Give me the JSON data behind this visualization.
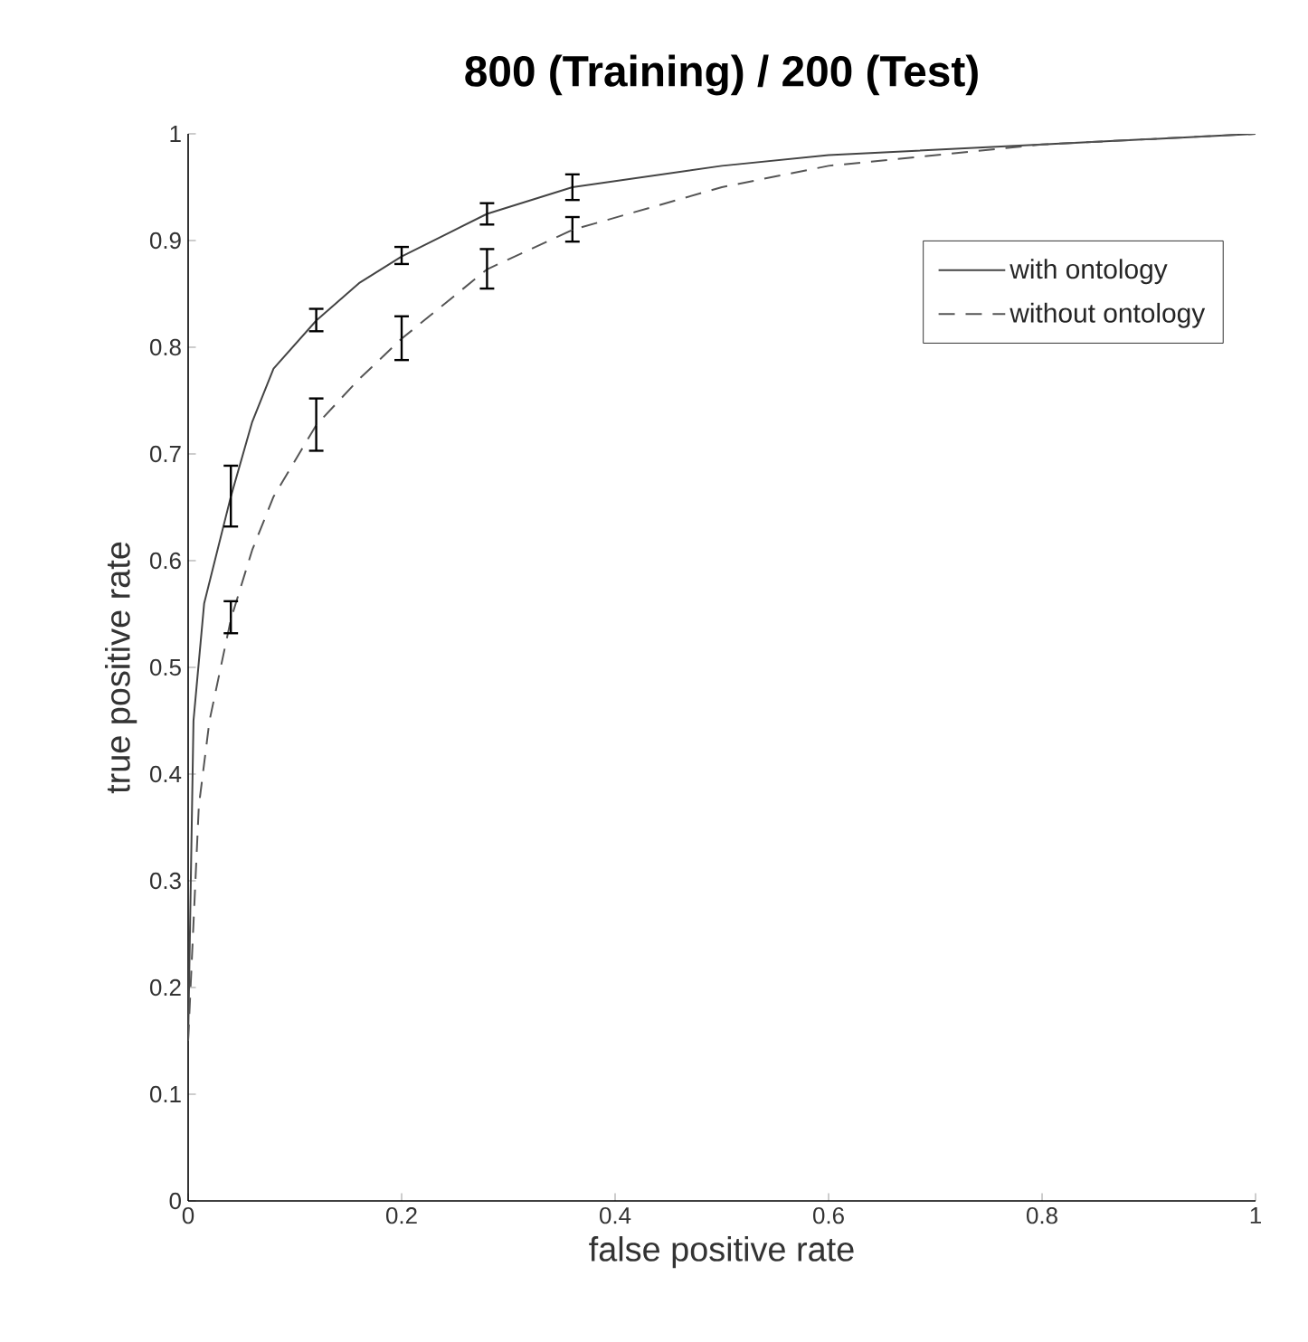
{
  "chart_data": {
    "type": "line",
    "title": "800 (Training) / 200 (Test)",
    "xlabel": "false positive rate",
    "ylabel": "true positive rate",
    "xlim": [
      0,
      1
    ],
    "ylim": [
      0,
      1
    ],
    "xticks": [
      0,
      0.2,
      0.4,
      0.6,
      0.8,
      1
    ],
    "yticks": [
      0,
      0.1,
      0.2,
      0.3,
      0.4,
      0.5,
      0.6,
      0.7,
      0.8,
      0.9,
      1
    ],
    "grid": false,
    "legend": "top right",
    "marker": "none",
    "series": [
      {
        "name": "with ontology",
        "color": "#444444",
        "line_style": "solid",
        "x": [
          0,
          0.005,
          0.015,
          0.04,
          0.06,
          0.08,
          0.12,
          0.16,
          0.2,
          0.28,
          0.36,
          0.5,
          0.6,
          0.8,
          1
        ],
        "values": [
          0.15,
          0.45,
          0.56,
          0.66,
          0.73,
          0.78,
          0.825,
          0.86,
          0.885,
          0.925,
          0.95,
          0.97,
          0.98,
          0.99,
          1.0
        ],
        "errors": [
          null,
          null,
          null,
          [
            0.632,
            0.689
          ],
          null,
          null,
          [
            0.815,
            0.836
          ],
          null,
          [
            0.878,
            0.894
          ],
          [
            0.915,
            0.935
          ],
          [
            0.938,
            0.962
          ],
          null,
          null,
          null,
          null
        ]
      },
      {
        "name": "without ontology",
        "color": "#555555",
        "line_style": "dashed",
        "x": [
          0,
          0.01,
          0.02,
          0.04,
          0.06,
          0.08,
          0.12,
          0.16,
          0.2,
          0.28,
          0.36,
          0.5,
          0.6,
          0.8,
          1
        ],
        "values": [
          0.15,
          0.37,
          0.45,
          0.545,
          0.61,
          0.66,
          0.727,
          0.77,
          0.808,
          0.873,
          0.91,
          0.95,
          0.97,
          0.99,
          1.0
        ],
        "errors": [
          null,
          null,
          null,
          [
            0.532,
            0.562
          ],
          null,
          null,
          [
            0.703,
            0.752
          ],
          null,
          [
            0.788,
            0.829
          ],
          [
            0.855,
            0.892
          ],
          [
            0.899,
            0.922
          ],
          null,
          null,
          null,
          null
        ]
      }
    ]
  }
}
